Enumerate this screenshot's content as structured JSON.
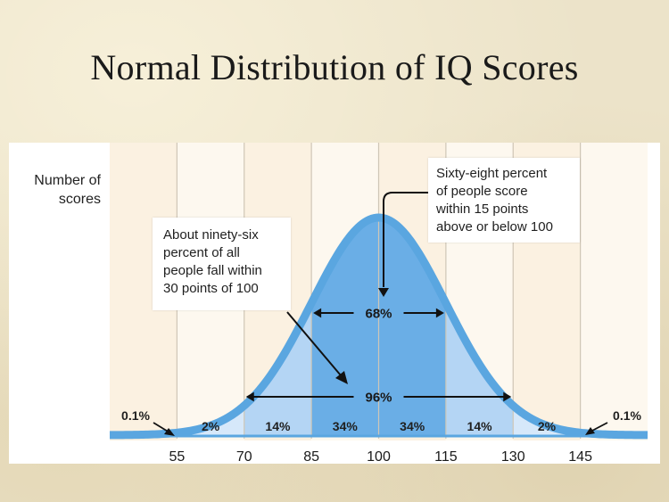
{
  "slide": {
    "title": "Normal Distribution of IQ Scores"
  },
  "chart_data": {
    "type": "area",
    "title": "Normal Distribution of IQ Scores",
    "ylabel_lines": [
      "Number of",
      "scores"
    ],
    "xlabel": "",
    "x_ticks": [
      55,
      70,
      85,
      100,
      115,
      130,
      145
    ],
    "xlim": [
      40,
      160
    ],
    "distribution": {
      "mean": 100,
      "sd": 15
    },
    "segments": [
      {
        "from": 40,
        "to": 55,
        "label": "0.1%"
      },
      {
        "from": 55,
        "to": 70,
        "label": "2%"
      },
      {
        "from": 70,
        "to": 85,
        "label": "14%"
      },
      {
        "from": 85,
        "to": 100,
        "label": "34%"
      },
      {
        "from": 100,
        "to": 115,
        "label": "34%"
      },
      {
        "from": 115,
        "to": 130,
        "label": "14%"
      },
      {
        "from": 130,
        "to": 145,
        "label": "2%"
      },
      {
        "from": 145,
        "to": 160,
        "label": "0.1%"
      }
    ],
    "ranges": [
      {
        "from": 85,
        "to": 115,
        "label": "68%"
      },
      {
        "from": 70,
        "to": 130,
        "label": "96%"
      }
    ],
    "annotations": {
      "left_callout": [
        "About ninety-six",
        "percent of all",
        "people fall within",
        "30 points of 100"
      ],
      "right_callout": [
        "Sixty-eight percent",
        "of people score",
        "within 15 points",
        "above or below 100"
      ]
    },
    "colors": {
      "curve": "#5aa6e0",
      "band_center": "#6aaee6",
      "band_middle": "#b4d5f4",
      "band_outer": "#d6e8fa",
      "band_tail": "#eef5fd",
      "column_bg": "#fbf1e1",
      "column_bg_alt": "#fdf8ef",
      "grid": "#cfc6b6",
      "text": "#222222"
    }
  }
}
